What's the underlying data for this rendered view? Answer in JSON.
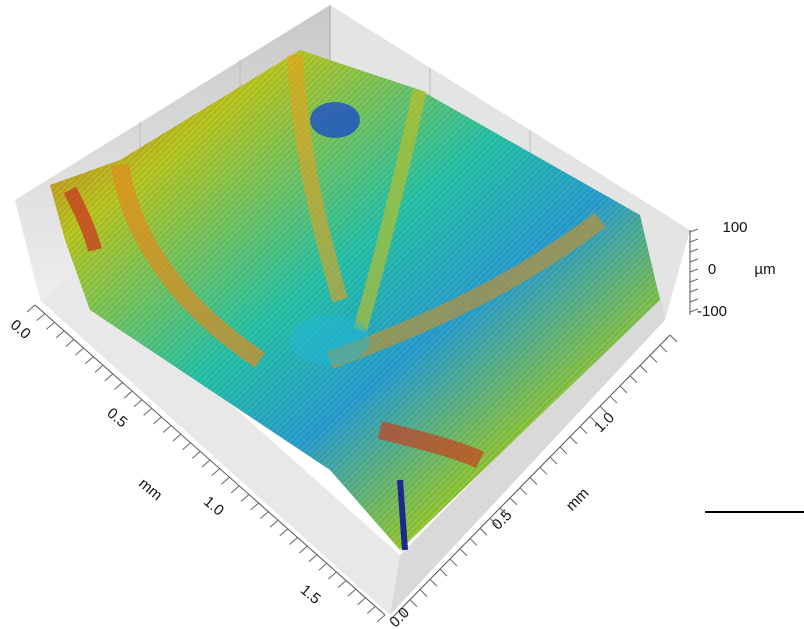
{
  "x_axis": {
    "unit": "mm",
    "ticks": [
      "0.0",
      "0.5",
      "1.0",
      "1.5"
    ]
  },
  "y_axis": {
    "unit": "mm",
    "ticks": [
      "0.0",
      "0.5",
      "1.0"
    ]
  },
  "z_axis": {
    "unit": "µm",
    "ticks": [
      "100",
      "0",
      "-100"
    ]
  }
}
